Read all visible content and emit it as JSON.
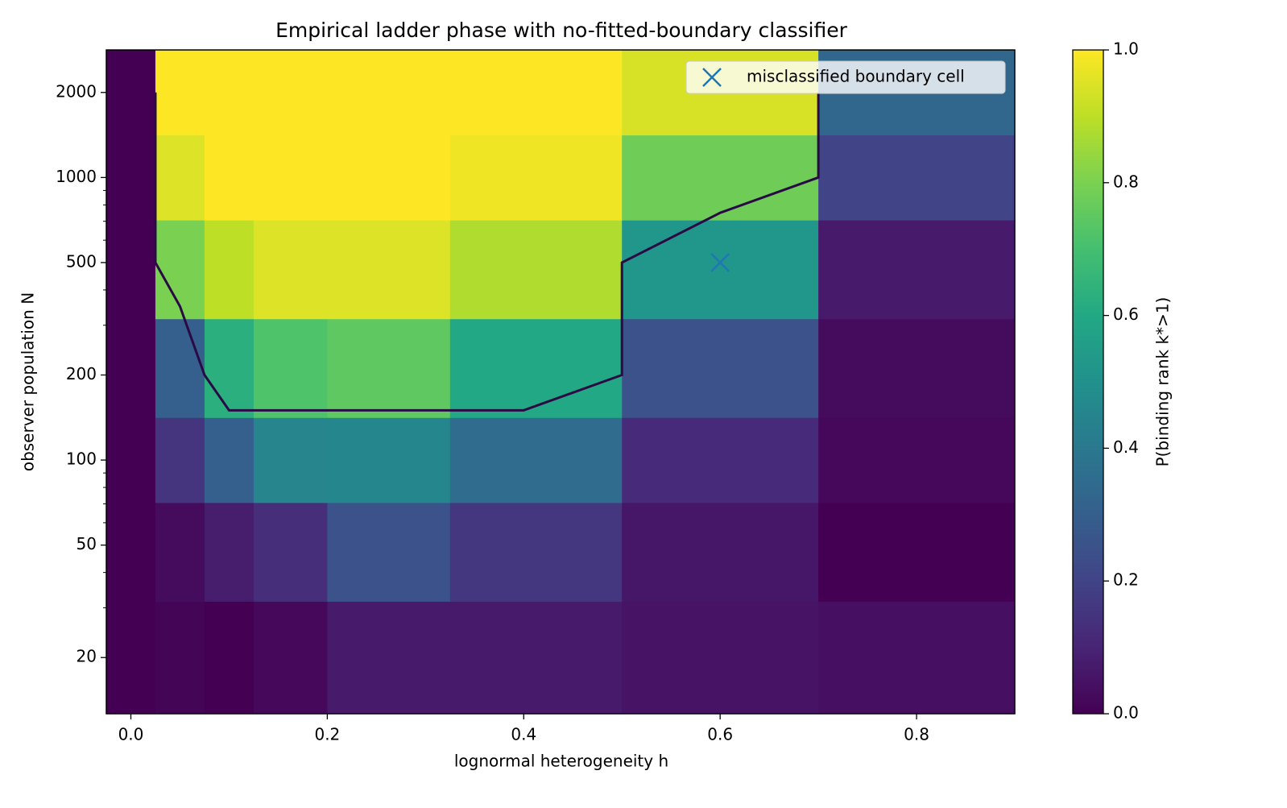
{
  "chart_data": {
    "type": "heatmap",
    "title": "Empirical ladder phase with no-fitted-boundary classifier",
    "x_label": "lognormal heterogeneity h",
    "y_label": "observer population N",
    "colorbar_label": "P(binding rank k*>1)",
    "colormap": "viridis",
    "x": [
      0,
      0.05,
      0.1,
      0.15,
      0.25,
      0.4,
      0.6,
      0.8
    ],
    "y": [
      20,
      50,
      100,
      200,
      500,
      1000,
      2000
    ],
    "values": [
      [
        0,
        0.01,
        0,
        0.02,
        0.07,
        0.07,
        0.05,
        0.04
      ],
      [
        0,
        0.03,
        0.08,
        0.13,
        0.25,
        0.16,
        0.06,
        0
      ],
      [
        0,
        0.15,
        0.3,
        0.45,
        0.46,
        0.35,
        0.12,
        0.02
      ],
      [
        0,
        0.3,
        0.63,
        0.72,
        0.75,
        0.6,
        0.25,
        0.03
      ],
      [
        0,
        0.8,
        0.9,
        0.95,
        0.95,
        0.88,
        0.52,
        0.07
      ],
      [
        0,
        0.95,
        1,
        1,
        1,
        0.98,
        0.78,
        0.2
      ],
      [
        0,
        1,
        1,
        1,
        1,
        1,
        0.94,
        0.33
      ]
    ],
    "contour": {
      "color": "#2a0a45",
      "x": [
        0.025,
        0.025,
        0.05,
        0.075,
        0.1,
        0.4,
        0.5,
        0.5,
        0.6,
        0.7,
        0.7
      ],
      "y": [
        2000,
        500,
        350,
        200,
        150,
        150,
        200,
        500,
        750,
        1000,
        2000
      ]
    },
    "markers": {
      "name": "misclassified boundary cell",
      "color": "#1f77b4",
      "x": [
        0.6
      ],
      "y": [
        500
      ]
    },
    "legend": "upper right",
    "xlim": [
      -0.025,
      0.9
    ],
    "ylim": [
      12.65,
      2828
    ],
    "yscale": "log",
    "xticks": [
      {
        "value": 0,
        "label": "0.0"
      },
      0.2,
      0.4,
      0.6,
      0.8
    ],
    "yticks": [
      20,
      50,
      100,
      200,
      500,
      1000,
      2000
    ],
    "yminorticks": [
      30,
      40,
      60,
      70,
      80,
      90,
      300,
      400,
      600,
      700,
      800,
      900
    ],
    "clim": [
      0,
      1
    ],
    "cticks": [
      {
        "value": 0,
        "label": "0.0"
      },
      0.2,
      0.4,
      0.6,
      0.8,
      {
        "value": 1,
        "label": "1.0"
      }
    ]
  }
}
